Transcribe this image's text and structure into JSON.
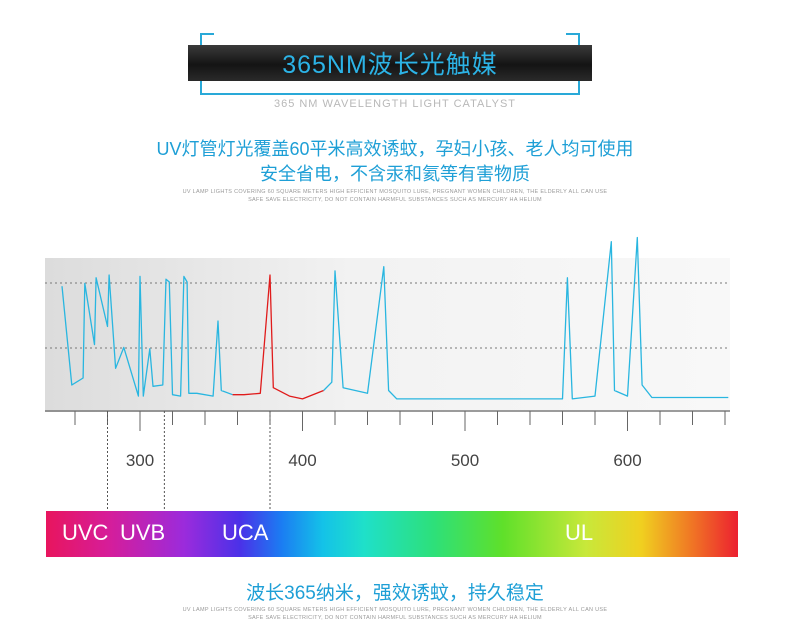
{
  "header": {
    "title": "365NM波长光触媒",
    "subtitle": "365 NM WAVELENGTH LIGHT CATALYST"
  },
  "intro": {
    "line1": "UV灯管灯光覆盖60平米高效诱蚊，孕妇小孩、老人均可使用",
    "line2": "安全省电，不含汞和氦等有害物质",
    "en1": "UV LAMP LIGHTS COVERING 60 SQUARE METERS HIGH EFFICIENT MOSQUITO LURE, PREGNANT WOMEN CHILDREN, THE ELDERLY ALL CAN USE",
    "en2": "SAFE SAVE ELECTRICITY, DO NOT CONTAIN HARMFUL SUBSTANCES SUCH AS MERCURY HA HELIUM"
  },
  "bands": [
    "UVC",
    "UVB",
    "UCA",
    "UL"
  ],
  "footer": {
    "line": "波长365纳米，强效诱蚊，持久稳定",
    "en1": "UV LAMP LIGHTS COVERING 60 SQUARE METERS HIGH EFFICIENT MOSQUITO LURE, PREGNANT WOMEN CHILDREN, THE ELDERLY ALL CAN USE",
    "en2": "SAFE SAVE ELECTRICITY, DO NOT CONTAIN HARMFUL SUBSTANCES SUCH AS MERCURY HA HELIUM"
  },
  "colors": {
    "accent": "#1e9fd6",
    "series": "#29b6e0",
    "highlight": "#e01b1b"
  },
  "chart_data": {
    "type": "line",
    "xlabel": "",
    "ylabel": "",
    "xlim": [
      243,
      665
    ],
    "ylim": [
      0,
      1.15
    ],
    "xticks": [
      300,
      400,
      500,
      600
    ],
    "band_boundaries": [
      280,
      315,
      380
    ],
    "series": [
      {
        "points": [
          [
            252,
            0.89
          ],
          [
            258,
            0.18
          ],
          [
            265,
            0.23
          ],
          [
            266,
            0.91
          ],
          [
            272,
            0.47
          ],
          [
            273,
            0.95
          ],
          [
            280,
            0.6
          ],
          [
            281,
            0.97
          ],
          [
            285,
            0.3
          ],
          [
            290,
            0.45
          ],
          [
            299,
            0.1
          ],
          [
            300,
            0.96
          ],
          [
            302,
            0.1
          ],
          [
            306,
            0.44
          ],
          [
            308,
            0.17
          ],
          [
            314,
            0.18
          ],
          [
            316,
            0.94
          ],
          [
            318,
            0.92
          ],
          [
            320,
            0.11
          ],
          [
            325,
            0.1
          ],
          [
            327,
            0.96
          ],
          [
            329,
            0.92
          ],
          [
            330,
            0.12
          ],
          [
            335,
            0.12
          ],
          [
            345,
            0.1
          ],
          [
            348,
            0.64
          ],
          [
            350,
            0.14
          ],
          [
            357,
            0.11
          ]
        ]
      },
      {
        "points": [
          [
            357,
            0.11
          ],
          [
            364,
            0.11
          ],
          [
            374,
            0.12
          ],
          [
            380,
            0.97
          ],
          [
            382,
            0.16
          ],
          [
            392,
            0.1
          ],
          [
            400,
            0.08
          ],
          [
            413,
            0.14
          ]
        ]
      },
      {
        "points": [
          [
            413,
            0.14
          ],
          [
            418,
            0.2
          ],
          [
            420,
            1.0
          ],
          [
            425,
            0.16
          ],
          [
            440,
            0.12
          ],
          [
            450,
            1.03
          ],
          [
            453,
            0.14
          ],
          [
            458,
            0.08
          ],
          [
            480,
            0.08
          ],
          [
            500,
            0.08
          ],
          [
            520,
            0.08
          ],
          [
            560,
            0.08
          ],
          [
            563,
            0.95
          ],
          [
            566,
            0.08
          ],
          [
            580,
            0.1
          ],
          [
            590,
            1.21
          ],
          [
            592,
            0.14
          ],
          [
            600,
            0.1
          ],
          [
            606,
            1.24
          ],
          [
            609,
            0.18
          ],
          [
            615,
            0.09
          ],
          [
            640,
            0.09
          ],
          [
            662,
            0.09
          ]
        ]
      }
    ]
  }
}
